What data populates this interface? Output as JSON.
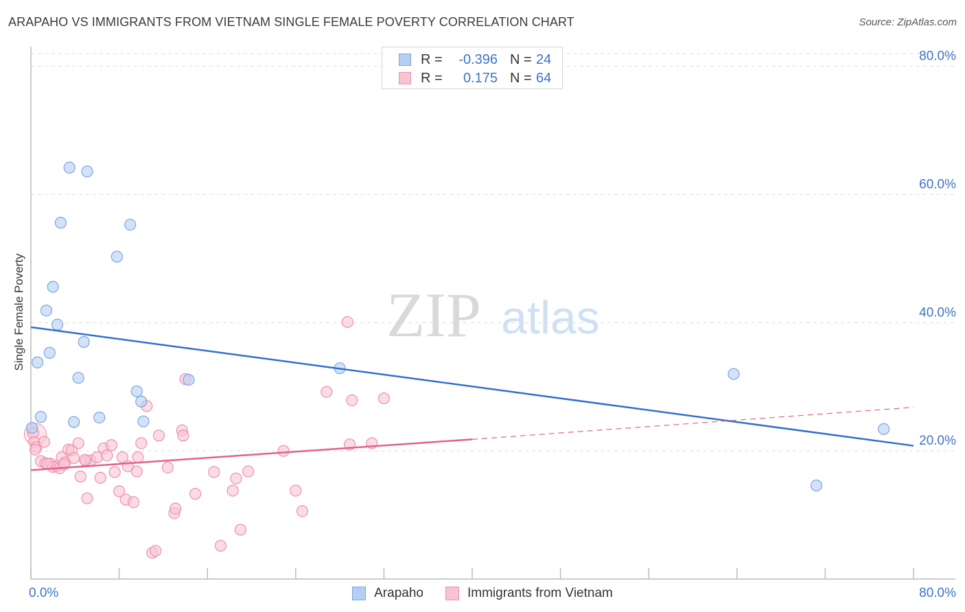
{
  "header": {
    "title": "ARAPAHO VS IMMIGRANTS FROM VIETNAM SINGLE FEMALE POVERTY CORRELATION CHART",
    "source": "Source: ZipAtlas.com"
  },
  "watermark": {
    "zip": "ZIP",
    "atlas": "atlas"
  },
  "legend_top": [
    {
      "r_label": "R =",
      "r_value": "-0.396",
      "n_label": "N =",
      "n_value": "24"
    },
    {
      "r_label": "R =",
      "r_value": "0.175",
      "n_label": "N =",
      "n_value": "64"
    }
  ],
  "legend_bottom": [
    {
      "label": "Arapaho"
    },
    {
      "label": "Immigrants from Vietnam"
    }
  ],
  "colors": {
    "blue_fill": "#b5cff2",
    "blue_stroke": "#7aa6e0",
    "blue_line": "#2f6fd1",
    "pink_fill": "#f8c4d4",
    "pink_stroke": "#eb90ac",
    "pink_line": "#e2608a",
    "tick_label": "#3d74c6",
    "grid": "#dddddd"
  },
  "chart_data": {
    "type": "scatter",
    "title": "ARAPAHO VS IMMIGRANTS FROM VIETNAM SINGLE FEMALE POVERTY CORRELATION CHART",
    "xlabel": "",
    "ylabel": "Single Female Poverty",
    "xlim": [
      0,
      80
    ],
    "ylim": [
      0,
      82
    ],
    "x_tick_labels": [
      {
        "value": 0,
        "label": "0.0%"
      },
      {
        "value": 80,
        "label": "80.0%"
      }
    ],
    "y_tick_labels": [
      {
        "value": 20,
        "label": "20.0%"
      },
      {
        "value": 40,
        "label": "40.0%"
      },
      {
        "value": 60,
        "label": "60.0%"
      },
      {
        "value": 80,
        "label": "80.0%"
      }
    ],
    "grid": true,
    "legend_position": "bottom-center",
    "series": [
      {
        "name": "Arapaho",
        "points": [
          [
            3.5,
            64.2
          ],
          [
            5.1,
            63.6
          ],
          [
            2.7,
            55.6
          ],
          [
            9.0,
            55.3
          ],
          [
            7.8,
            50.3
          ],
          [
            2.0,
            45.6
          ],
          [
            1.4,
            41.9
          ],
          [
            2.4,
            39.7
          ],
          [
            4.8,
            37.0
          ],
          [
            0.6,
            33.8
          ],
          [
            1.7,
            35.3
          ],
          [
            4.3,
            31.4
          ],
          [
            28.0,
            32.9
          ],
          [
            63.7,
            32.0
          ],
          [
            9.6,
            29.3
          ],
          [
            14.3,
            31.1
          ],
          [
            10.0,
            27.7
          ],
          [
            0.9,
            25.3
          ],
          [
            6.2,
            25.2
          ],
          [
            3.9,
            24.5
          ],
          [
            10.2,
            24.6
          ],
          [
            0.1,
            23.6
          ],
          [
            77.3,
            23.4
          ],
          [
            71.2,
            14.6
          ]
        ],
        "trend": {
          "x0": 0,
          "y0": 39.3,
          "x1": 80,
          "y1": 20.8
        }
      },
      {
        "name": "Immigrants from Vietnam",
        "points": [
          [
            0.2,
            22.8
          ],
          [
            0.3,
            21.4
          ],
          [
            0.5,
            20.6
          ],
          [
            1.2,
            21.4
          ],
          [
            0.9,
            18.4
          ],
          [
            1.3,
            18.1
          ],
          [
            1.8,
            18.0
          ],
          [
            2.3,
            17.6
          ],
          [
            2.0,
            17.5
          ],
          [
            2.6,
            17.3
          ],
          [
            2.8,
            19.0
          ],
          [
            3.1,
            18.2
          ],
          [
            3.4,
            20.2
          ],
          [
            3.7,
            20.1
          ],
          [
            3.9,
            18.9
          ],
          [
            4.3,
            21.2
          ],
          [
            4.5,
            16.0
          ],
          [
            5.0,
            18.4
          ],
          [
            5.1,
            12.6
          ],
          [
            5.4,
            18.5
          ],
          [
            6.0,
            19.0
          ],
          [
            6.3,
            15.8
          ],
          [
            6.6,
            20.4
          ],
          [
            6.9,
            19.3
          ],
          [
            7.3,
            20.9
          ],
          [
            7.6,
            16.7
          ],
          [
            8.0,
            13.7
          ],
          [
            8.3,
            19.0
          ],
          [
            8.6,
            12.4
          ],
          [
            8.8,
            17.6
          ],
          [
            9.3,
            12.0
          ],
          [
            9.6,
            16.8
          ],
          [
            9.7,
            19.0
          ],
          [
            10.0,
            21.2
          ],
          [
            10.5,
            27.0
          ],
          [
            11.0,
            4.1
          ],
          [
            11.3,
            4.4
          ],
          [
            11.6,
            22.4
          ],
          [
            12.4,
            17.4
          ],
          [
            13.0,
            10.3
          ],
          [
            13.1,
            11.0
          ],
          [
            13.7,
            23.2
          ],
          [
            13.8,
            22.4
          ],
          [
            14.0,
            31.2
          ],
          [
            14.9,
            13.3
          ],
          [
            16.6,
            16.7
          ],
          [
            17.2,
            5.2
          ],
          [
            18.3,
            13.8
          ],
          [
            18.6,
            15.7
          ],
          [
            19.0,
            7.7
          ],
          [
            19.7,
            16.8
          ],
          [
            22.9,
            20.0
          ],
          [
            24.0,
            13.8
          ],
          [
            24.6,
            10.6
          ],
          [
            26.8,
            29.2
          ],
          [
            28.7,
            40.1
          ],
          [
            28.9,
            21.0
          ],
          [
            29.1,
            27.9
          ],
          [
            30.9,
            21.2
          ],
          [
            32.0,
            28.2
          ],
          [
            0.4,
            20.2
          ],
          [
            1.5,
            18.0
          ],
          [
            3.0,
            17.9
          ],
          [
            4.9,
            18.6
          ]
        ],
        "trend": {
          "x0": 0,
          "y0": 17.0,
          "x1": 40,
          "y1": 21.8
        },
        "trend_extension": {
          "x0": 40,
          "y0": 21.8,
          "x1": 80,
          "y1": 26.8
        }
      }
    ]
  }
}
